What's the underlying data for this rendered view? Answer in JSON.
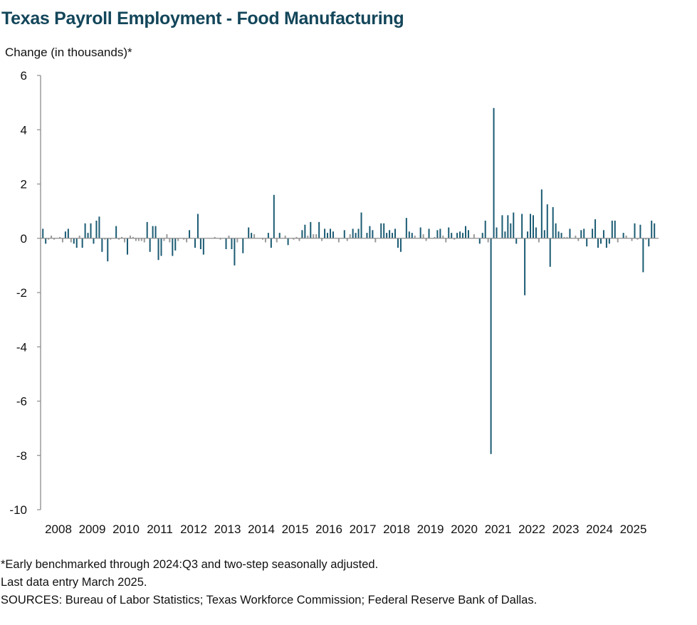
{
  "title": "Texas Payroll Employment - Food Manufacturing",
  "notes": [
    "*Early benchmarked through 2024:Q3 and two-step seasonally adjusted.",
    "Last data entry March 2025.",
    "SOURCES: Bureau of Labor Statistics; Texas Workforce Commission; Federal Reserve Bank of Dallas."
  ],
  "colors": {
    "bar": "#1b5b73",
    "bar_minor": "#9a9a9a",
    "axis": "#8c8c8c",
    "title": "#13465a"
  },
  "chart_data": {
    "type": "bar",
    "ylabel": "Change (in thousands)*",
    "ylim": [
      -10,
      6
    ],
    "yticks": [
      6,
      4,
      2,
      0,
      -2,
      -4,
      -6,
      -8,
      -10
    ],
    "x_start": "2008-01",
    "xticks": [
      "2008",
      "2009",
      "2010",
      "2011",
      "2012",
      "2013",
      "2014",
      "2015",
      "2016",
      "2017",
      "2018",
      "2019",
      "2020",
      "2021",
      "2022",
      "2023",
      "2024",
      "2025"
    ],
    "grid": false,
    "legend": "none",
    "values": [
      0.35,
      -0.2,
      -0.05,
      0.1,
      -0.05,
      0.0,
      0.05,
      -0.15,
      0.25,
      0.35,
      -0.15,
      -0.2,
      -0.35,
      0.1,
      -0.35,
      0.55,
      0.2,
      0.55,
      -0.2,
      0.65,
      0.8,
      -0.5,
      -0.05,
      -0.85,
      -0.05,
      0.0,
      0.45,
      -0.05,
      0.05,
      -0.15,
      -0.6,
      0.1,
      0.05,
      -0.1,
      -0.1,
      -0.1,
      -0.15,
      0.6,
      -0.5,
      0.45,
      0.45,
      -0.8,
      -0.65,
      -0.1,
      0.15,
      -0.15,
      -0.65,
      -0.45,
      -0.1,
      0.0,
      -0.05,
      -0.15,
      0.3,
      0.0,
      -0.35,
      0.9,
      -0.4,
      -0.6,
      0.0,
      0.0,
      0.0,
      0.05,
      0.0,
      -0.05,
      0.0,
      -0.4,
      0.1,
      -0.4,
      -1.0,
      -0.15,
      0.0,
      -0.55,
      0.0,
      0.4,
      0.2,
      0.15,
      0.0,
      0.0,
      -0.05,
      -0.15,
      0.2,
      -0.35,
      1.6,
      -0.15,
      0.2,
      0.0,
      0.1,
      -0.25,
      0.0,
      -0.05,
      0.05,
      -0.1,
      0.3,
      0.5,
      0.1,
      0.6,
      0.15,
      0.15,
      0.6,
      -0.1,
      0.35,
      0.2,
      0.35,
      0.25,
      0.0,
      -0.15,
      0.0,
      0.3,
      -0.1,
      0.15,
      0.35,
      0.2,
      0.35,
      0.95,
      0.0,
      0.2,
      0.45,
      0.3,
      -0.15,
      0.0,
      0.55,
      0.55,
      0.2,
      0.3,
      0.2,
      0.35,
      -0.35,
      -0.5,
      0.0,
      0.75,
      0.25,
      0.2,
      0.1,
      0.0,
      0.4,
      0.15,
      -0.1,
      0.35,
      0.0,
      0.05,
      0.3,
      0.35,
      0.1,
      -0.15,
      0.4,
      0.2,
      -0.05,
      0.2,
      0.25,
      0.2,
      0.45,
      0.3,
      0.0,
      0.15,
      0.0,
      -0.2,
      0.2,
      0.65,
      -0.15,
      -7.95,
      4.8,
      0.4,
      0.0,
      0.85,
      0.25,
      0.85,
      0.55,
      0.95,
      -0.2,
      0.0,
      0.9,
      -2.1,
      0.25,
      0.9,
      0.85,
      0.4,
      -0.15,
      1.8,
      0.3,
      1.25,
      -1.05,
      1.15,
      0.55,
      0.25,
      0.2,
      0.05,
      0.05,
      0.35,
      0.0,
      0.1,
      -0.1,
      0.3,
      0.35,
      -0.3,
      0.0,
      0.35,
      0.7,
      -0.35,
      -0.2,
      0.3,
      -0.35,
      -0.2,
      0.65,
      0.65,
      -0.15,
      0.0,
      0.2,
      0.1,
      0.0,
      -0.1,
      0.55,
      -0.05,
      0.5,
      -1.25,
      -0.05,
      -0.3,
      0.65,
      0.55,
      0.0
    ]
  }
}
